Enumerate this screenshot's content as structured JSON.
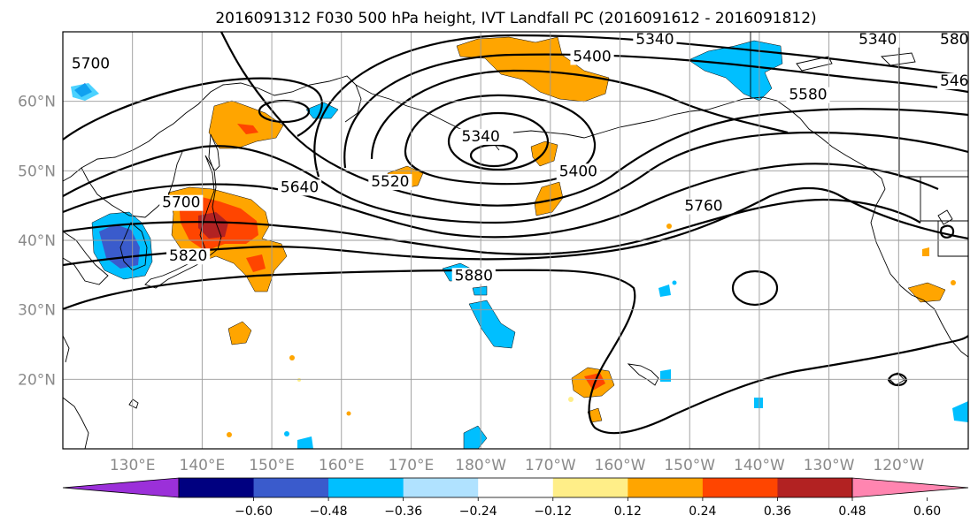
{
  "title": "2016091312 F030 500 hPa height, IVT Landfall PC (2016091612 - 2016091812)",
  "map": {
    "region": "North Pacific",
    "lon_range": [
      120,
      250
    ],
    "lat_range": [
      10,
      70
    ],
    "lat_ticks": [
      {
        "lat": 60,
        "label": "60°N"
      },
      {
        "lat": 50,
        "label": "50°N"
      },
      {
        "lat": 40,
        "label": "40°N"
      },
      {
        "lat": 30,
        "label": "30°N"
      },
      {
        "lat": 20,
        "label": "20°N"
      }
    ],
    "lon_ticks": [
      {
        "lon": 130,
        "label": "130°E"
      },
      {
        "lon": 140,
        "label": "140°E"
      },
      {
        "lon": 150,
        "label": "150°E"
      },
      {
        "lon": 160,
        "label": "160°E"
      },
      {
        "lon": 170,
        "label": "170°E"
      },
      {
        "lon": 180,
        "label": "180°W"
      },
      {
        "lon": 190,
        "label": "170°W"
      },
      {
        "lon": 200,
        "label": "160°W"
      },
      {
        "lon": 210,
        "label": "150°W"
      },
      {
        "lon": 220,
        "label": "140°W"
      },
      {
        "lon": 230,
        "label": "130°W"
      },
      {
        "lon": 240,
        "label": "120°W"
      }
    ],
    "gridlines": true,
    "contour_labels": [
      {
        "text": "5700",
        "lon": 124,
        "lat": 65
      },
      {
        "text": "5340",
        "lon": 205,
        "lat": 68.5
      },
      {
        "text": "5340",
        "lon": 237,
        "lat": 68.5
      },
      {
        "text": "580",
        "lon": 248,
        "lat": 68.5
      },
      {
        "text": "5400",
        "lon": 196,
        "lat": 66
      },
      {
        "text": "546",
        "lon": 248,
        "lat": 62.5
      },
      {
        "text": "5580",
        "lon": 227,
        "lat": 60.5
      },
      {
        "text": "5340",
        "lon": 180,
        "lat": 54.5
      },
      {
        "text": "5400",
        "lon": 194,
        "lat": 49.5
      },
      {
        "text": "5520",
        "lon": 167,
        "lat": 48
      },
      {
        "text": "5640",
        "lon": 154,
        "lat": 47.2
      },
      {
        "text": "5700",
        "lon": 137,
        "lat": 45
      },
      {
        "text": "5760",
        "lon": 212,
        "lat": 44.5
      },
      {
        "text": "5820",
        "lon": 138,
        "lat": 37.3
      },
      {
        "text": "5880",
        "lon": 179,
        "lat": 34.5
      }
    ]
  },
  "colorbar": {
    "colors": [
      "#9b30d9",
      "#000080",
      "#3a5bcc",
      "#00bfff",
      "#b0e2ff",
      "#ffffff",
      "#ffee88",
      "#ffa500",
      "#ff4500",
      "#b22222",
      "#ff85b0"
    ],
    "ticks": [
      {
        "value": -0.6,
        "label": "−0.60"
      },
      {
        "value": -0.48,
        "label": "−0.48"
      },
      {
        "value": -0.36,
        "label": "−0.36"
      },
      {
        "value": -0.24,
        "label": "−0.24"
      },
      {
        "value": -0.12,
        "label": "−0.12"
      },
      {
        "value": 0.12,
        "label": "0.12"
      },
      {
        "value": 0.24,
        "label": "0.24"
      },
      {
        "value": 0.36,
        "label": "0.36"
      },
      {
        "value": 0.48,
        "label": "0.48"
      },
      {
        "value": 0.6,
        "label": "0.60"
      }
    ]
  }
}
